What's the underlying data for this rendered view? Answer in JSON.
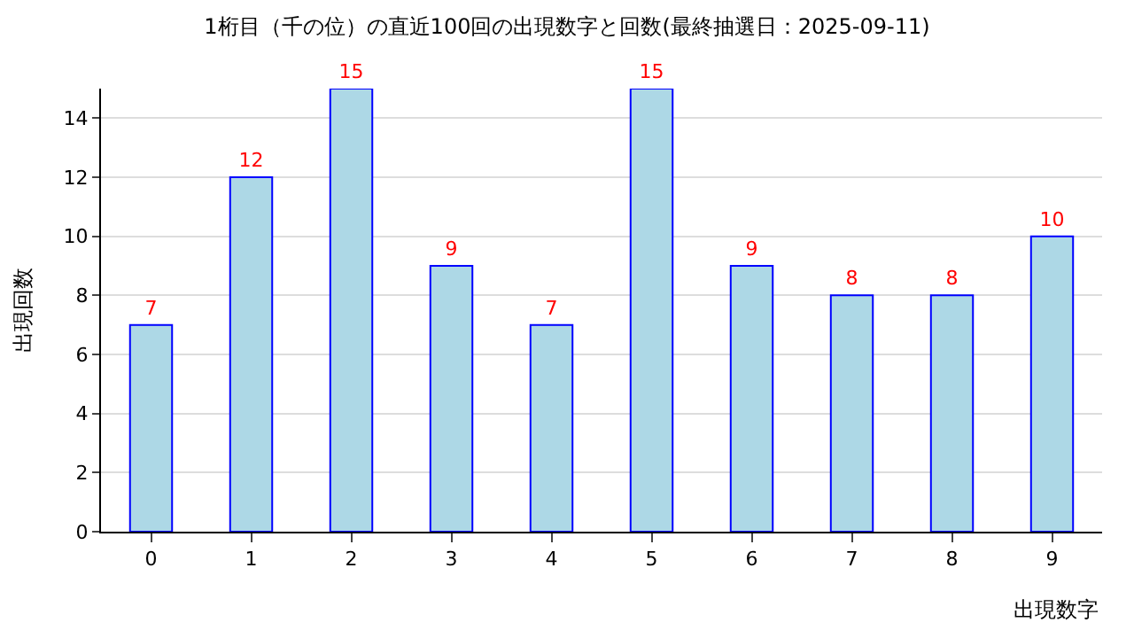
{
  "chart_data": {
    "type": "bar",
    "title": "1桁目（千の位）の直近100回の出現数字と回数(最終抽選日：2025-09-11)",
    "xlabel": "出現数字",
    "ylabel": "出現回数",
    "categories": [
      "0",
      "1",
      "2",
      "3",
      "4",
      "5",
      "6",
      "7",
      "8",
      "9"
    ],
    "values": [
      7,
      12,
      15,
      9,
      7,
      15,
      9,
      8,
      8,
      10
    ],
    "color": "#add8e6",
    "ylim": [
      0,
      15
    ],
    "yticks": [
      0,
      2,
      4,
      6,
      8,
      10,
      12,
      14
    ],
    "grid": "y",
    "data_labels": true,
    "legend": false
  }
}
